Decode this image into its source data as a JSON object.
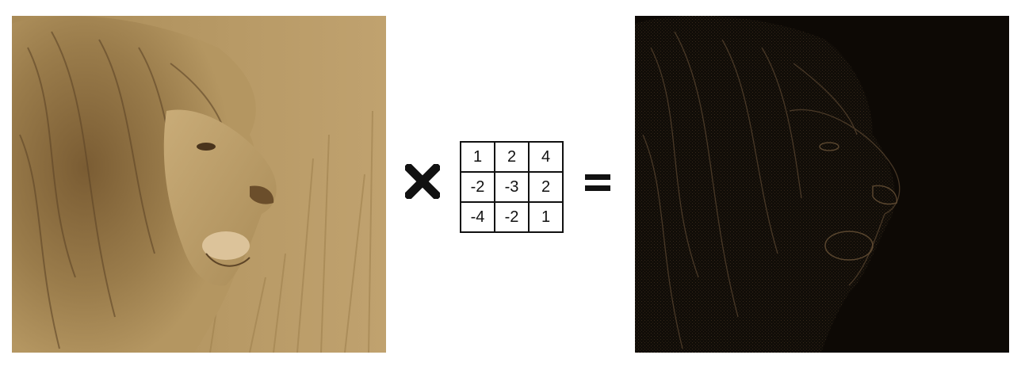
{
  "input_image": {
    "icon": "lion-sepia-photo",
    "tone_colors": [
      "#c2a46f",
      "#b49661",
      "#8c6f42",
      "#5e4527"
    ]
  },
  "operator": {
    "multiply_icon": "heavy-multiplication-x-icon",
    "equals_icon": "equals-icon",
    "color": "#111111"
  },
  "kernel": {
    "rows": [
      [
        "1",
        "2",
        "4"
      ],
      [
        "-2",
        "-3",
        "2"
      ],
      [
        "-4",
        "-2",
        "1"
      ]
    ]
  },
  "output_image": {
    "icon": "lion-edge-feature-map",
    "tone_colors": [
      "#0d0905",
      "#3a2c1c",
      "#6a5338"
    ]
  }
}
